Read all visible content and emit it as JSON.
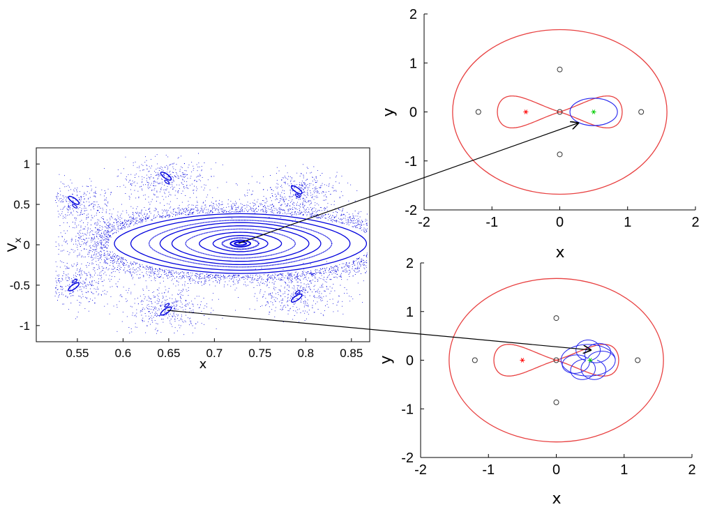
{
  "chart_data": [
    {
      "type": "scatter",
      "panel": "poincare-section",
      "xlabel": "x",
      "ylabel": "V",
      "ylabel_sub": "x",
      "xlim": [
        0.505,
        0.87
      ],
      "ylim": [
        -1.2,
        1.2
      ],
      "x_ticks": [
        0.55,
        0.6,
        0.65,
        0.7,
        0.75,
        0.8,
        0.85
      ],
      "x_tick_labels": [
        "0.55",
        "0.6",
        "0.65",
        "0.7",
        "0.75",
        "0.8",
        "0.85"
      ],
      "y_ticks": [
        1,
        0.5,
        0,
        -0.5,
        -1
      ],
      "y_tick_labels": [
        "1",
        "0.5",
        "0",
        "-0.5",
        "-1"
      ],
      "grid": false,
      "series_color": "#0000dd",
      "invariant_curves": {
        "center": [
          0.7285,
          0.015
        ],
        "semi_axes_x": [
          0.0065,
          0.011,
          0.02,
          0.03,
          0.045,
          0.06,
          0.075,
          0.088,
          0.1,
          0.12,
          0.138
        ],
        "semi_axes_v": [
          0.02,
          0.04,
          0.07,
          0.1,
          0.14,
          0.18,
          0.22,
          0.26,
          0.29,
          0.33,
          0.37
        ]
      },
      "island_chain_centers": [
        [
          0.546,
          0.55
        ],
        [
          0.546,
          -0.52
        ],
        [
          0.647,
          0.85
        ],
        [
          0.647,
          -0.82
        ],
        [
          0.79,
          0.68
        ],
        [
          0.79,
          -0.66
        ]
      ]
    },
    {
      "type": "line",
      "panel": "orbit-top",
      "xlabel": "x",
      "ylabel": "y",
      "xlim": [
        -2,
        2
      ],
      "ylim": [
        -2,
        2
      ],
      "x_ticks": [
        -2,
        -1,
        0,
        1,
        2
      ],
      "x_tick_labels": [
        "-2",
        "-1",
        "0",
        "1",
        "2"
      ],
      "y_ticks": [
        2,
        1,
        0,
        -1,
        -2
      ],
      "y_tick_labels": [
        "2",
        "1",
        "0",
        "-1",
        "-2"
      ],
      "outer_curve": {
        "rx": 1.58,
        "ry": 1.68
      },
      "lobe_half_width": 0.92,
      "lobe_max_height": 0.37,
      "primaries": [
        [
          -0.5,
          0
        ],
        [
          0.5,
          0
        ]
      ],
      "primary_colors": [
        "#ff0000",
        "#00cc00"
      ],
      "lagrange_points": [
        [
          -1.2,
          0
        ],
        [
          0,
          0
        ],
        [
          1.2,
          0
        ],
        [
          0,
          0.866
        ],
        [
          0,
          -0.866
        ]
      ],
      "orbit": {
        "kind": "loop",
        "cx": 0.5,
        "cy": 0,
        "rx": 0.35,
        "ry": 0.28
      }
    },
    {
      "type": "line",
      "panel": "orbit-bottom",
      "xlabel": "x",
      "ylabel": "y",
      "xlim": [
        -2,
        2
      ],
      "ylim": [
        -2,
        2
      ],
      "x_ticks": [
        -2,
        -1,
        0,
        1,
        2
      ],
      "x_tick_labels": [
        "-2",
        "-1",
        "0",
        "1",
        "2"
      ],
      "y_ticks": [
        2,
        1,
        0,
        -1,
        -2
      ],
      "y_tick_labels": [
        "2",
        "1",
        "0",
        "-1",
        "-2"
      ],
      "outer_curve": {
        "rx": 1.58,
        "ry": 1.68
      },
      "lobe_half_width": 0.92,
      "lobe_max_height": 0.37,
      "primaries": [
        [
          -0.5,
          0
        ],
        [
          0.5,
          0
        ]
      ],
      "primary_colors": [
        "#ff0000",
        "#00cc00"
      ],
      "lagrange_points": [
        [
          -1.2,
          0
        ],
        [
          0,
          0
        ],
        [
          1.2,
          0
        ],
        [
          0,
          0.866
        ],
        [
          0,
          -0.866
        ]
      ],
      "orbit": {
        "kind": "rosette",
        "cx": 0.47,
        "cy": 0,
        "rx": 0.4,
        "ry": 0.26,
        "petals": 4
      }
    }
  ],
  "colors": {
    "zero_velocity_curve": "#e84040",
    "orbit": "#2222ee",
    "poincare_points": "#0000dd",
    "arrow": "#000000",
    "lagrange_marker": "#333333"
  }
}
